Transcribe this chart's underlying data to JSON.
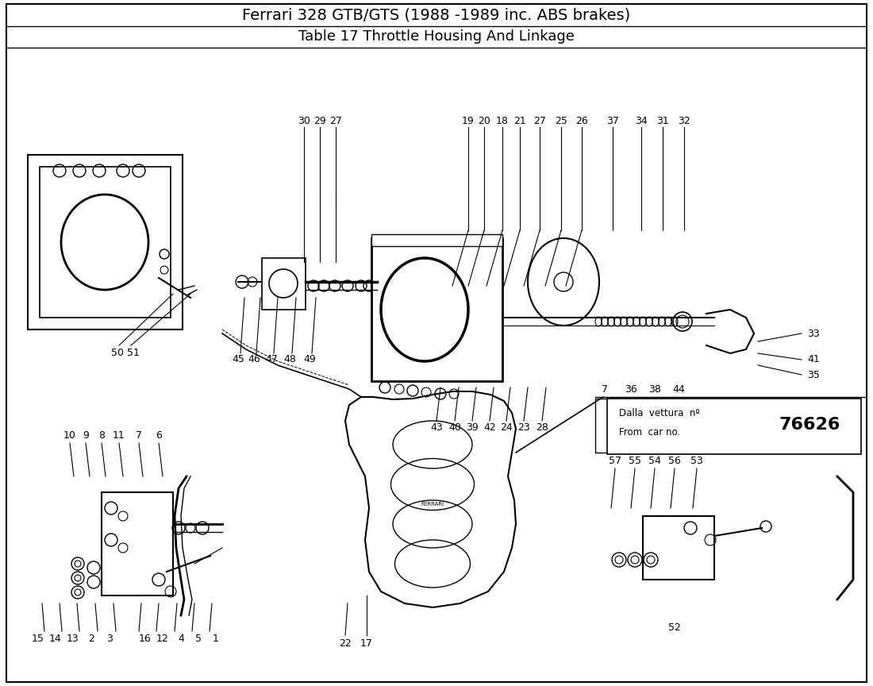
{
  "title1": "Ferrari 328 GTB/GTS (1988 -1989 inc. ABS brakes)",
  "title2": "Table 17 Throttle Housing And Linkage",
  "fig_width": 11.0,
  "fig_height": 8.64,
  "dpi": 100,
  "title1_fontsize": 14,
  "title2_fontsize": 13,
  "label_fontsize": 9,
  "dalla_text1": "Dalla  vettura  nº",
  "dalla_text2": "From  car no.",
  "dalla_number": "76626",
  "dalla_number_fontsize": 16
}
